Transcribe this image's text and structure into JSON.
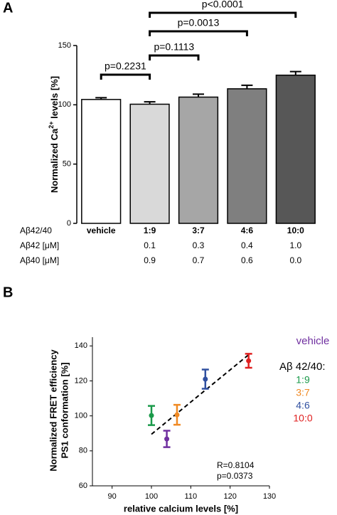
{
  "chart_data": [
    {
      "type": "bar",
      "panel_label": "A",
      "y_label": [
        "Normalized Ca",
        "2+",
        " levels [%]"
      ],
      "categories": [
        "vehicle",
        "1:9",
        "3:7",
        "4:6",
        "10:0"
      ],
      "values": [
        104.5,
        100.5,
        106.5,
        113.5,
        125
      ],
      "errors": [
        1.5,
        2,
        2.5,
        3,
        3
      ],
      "colors": [
        "#ffffff",
        "#d9d9d9",
        "#a6a6a6",
        "#7f7f7f",
        "#575757"
      ],
      "ylim": [
        0,
        150
      ],
      "yticks": [
        0,
        50,
        100,
        150
      ],
      "annotations": [
        "p=0.2231",
        "p=0.1113",
        "p=0.0013",
        "p<0.0001"
      ],
      "table": {
        "row_labels": [
          "Aβ42/40",
          "Aβ42 [μM]",
          "Aβ40 [μM]"
        ],
        "rows": [
          [
            null,
            "0.1",
            "0.3",
            "0.4",
            "1.0"
          ],
          [
            null,
            "0.9",
            "0.7",
            "0.6",
            "0.0"
          ]
        ]
      }
    },
    {
      "type": "scatter",
      "panel_label": "B",
      "y_label": [
        "Normalized FRET efficiency",
        "PS1 conformation [%]"
      ],
      "x_label": "relative calcium levels [%]",
      "series": [
        {
          "name": "vehicle",
          "color": "#7030a0",
          "x": [
            103.9
          ],
          "values": [
            86.8
          ],
          "errors": [
            4.7
          ]
        },
        {
          "name": "1:9",
          "color": "#1a9a4a",
          "x": [
            100
          ],
          "values": [
            100.2
          ],
          "errors": [
            5.5
          ]
        },
        {
          "name": "3:7",
          "color": "#f08a24",
          "x": [
            106.5
          ],
          "values": [
            100.6
          ],
          "errors": [
            5.7
          ]
        },
        {
          "name": "4:6",
          "color": "#3050a0",
          "x": [
            113.7
          ],
          "values": [
            121
          ],
          "errors": [
            5.5
          ]
        },
        {
          "name": "10:0",
          "color": "#e02020",
          "x": [
            124.7
          ],
          "values": [
            131.5
          ],
          "errors": [
            4
          ]
        }
      ],
      "legend_title": "Aβ 42/40:",
      "trend_line": {
        "x": [
          100,
          125
        ],
        "values": [
          89.5,
          135.5
        ]
      },
      "annotations": [
        "R=0.8104",
        "p=0.0373"
      ],
      "xlim": [
        85,
        130
      ],
      "xticks": [
        90,
        100,
        110,
        120,
        130
      ],
      "ylim": [
        60,
        145
      ],
      "yticks": [
        60,
        80,
        100,
        120,
        140
      ]
    }
  ]
}
